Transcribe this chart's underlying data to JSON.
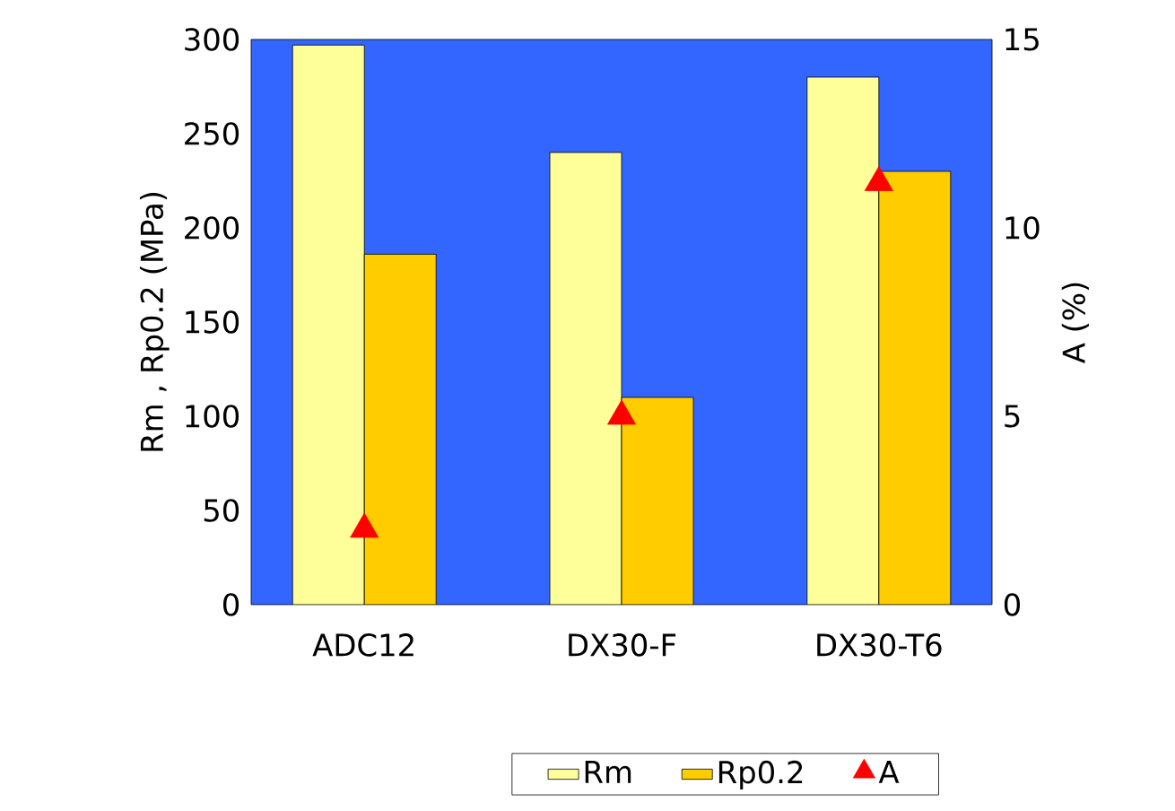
{
  "chart_data": {
    "type": "bar",
    "categories": [
      "ADC12",
      "DX30-F",
      "DX30-T6"
    ],
    "ylabel": "Rm , Rp0.2 (MPa)",
    "y2label": "A (%)",
    "ylim": [
      0,
      300
    ],
    "yticks": [
      0,
      50,
      100,
      150,
      200,
      250,
      300
    ],
    "y2lim": [
      0,
      15
    ],
    "y2ticks": [
      0,
      5,
      10,
      15
    ],
    "legend": "bottom",
    "grid": false,
    "series": [
      {
        "name": "Rm",
        "color": "#ffff99",
        "values": [
          297,
          240,
          280
        ]
      },
      {
        "name": "Rp0.2",
        "color": "#ffcc00",
        "values": [
          186,
          110,
          230
        ]
      },
      {
        "name": "A",
        "type": "scatter",
        "axis": "y2",
        "marker": "triangle",
        "color": "#ff0000",
        "values": [
          2,
          5,
          11.2
        ]
      }
    ]
  }
}
